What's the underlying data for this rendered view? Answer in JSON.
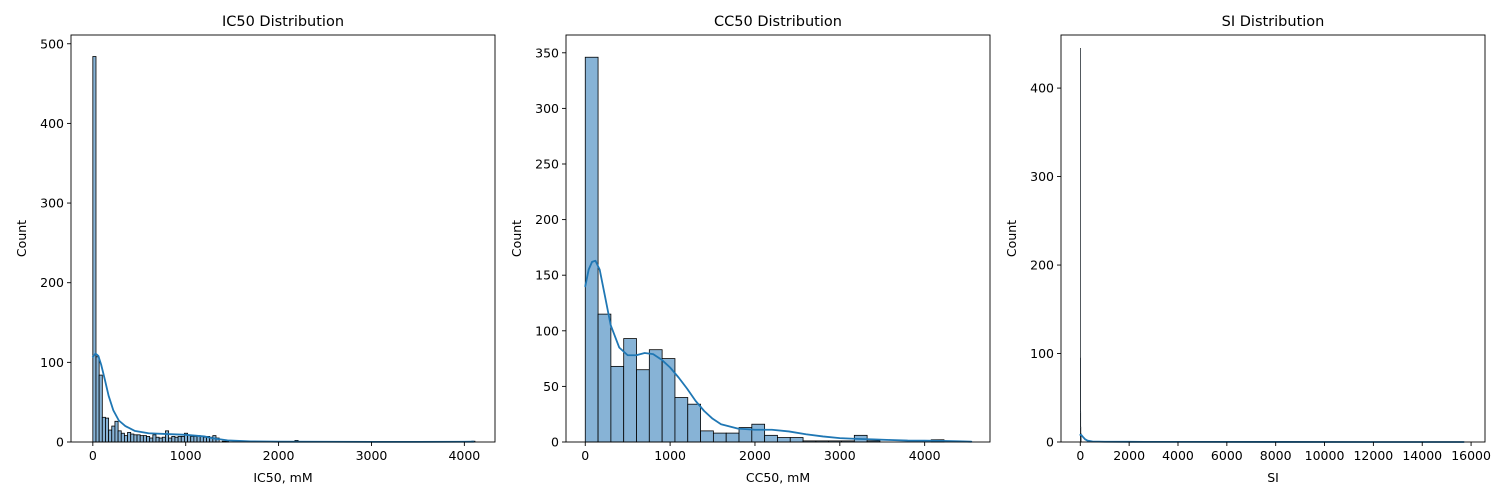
{
  "colors": {
    "bar_fill": "#87b3d6",
    "bar_edge": "#000000",
    "kde": "#1f77b4"
  },
  "chart_data": [
    {
      "type": "histogram",
      "title": "IC50 Distribution",
      "xlabel": "IC50, mM",
      "ylabel": "Count",
      "xlim": [
        -235,
        4330
      ],
      "ylim": [
        0,
        511
      ],
      "xticks": [
        0,
        1000,
        2000,
        3000,
        4000
      ],
      "yticks": [
        0,
        100,
        200,
        300,
        400,
        500
      ],
      "bin_start": 0,
      "bin_width": 34,
      "counts": [
        484,
        107,
        84,
        31,
        30,
        15,
        20,
        26,
        14,
        11,
        8,
        12,
        10,
        9,
        9,
        8,
        8,
        7,
        5,
        9,
        6,
        5,
        6,
        14,
        5,
        7,
        6,
        7,
        7,
        11,
        8,
        7,
        7,
        8,
        7,
        6,
        7,
        6,
        8,
        5,
        0,
        1,
        1,
        0,
        0,
        0,
        0,
        0,
        0,
        0,
        0,
        0,
        0,
        0,
        0,
        0,
        0,
        0,
        0,
        0,
        0,
        0,
        0,
        0,
        2,
        0,
        0,
        0,
        0,
        0,
        0,
        0,
        0,
        0,
        0,
        0,
        0,
        0,
        0,
        0,
        0,
        0,
        0,
        0,
        0,
        0,
        0,
        0,
        0,
        0,
        0,
        0,
        0,
        0,
        0,
        0,
        0,
        0,
        0,
        0,
        0,
        0,
        0,
        0,
        0,
        0,
        0,
        0,
        0,
        0,
        0,
        0,
        0,
        0,
        0,
        0,
        0,
        0,
        0,
        0,
        1
      ],
      "kde": {
        "x": [
          0,
          30,
          60,
          90,
          130,
          170,
          220,
          280,
          350,
          450,
          600,
          800,
          1000,
          1200,
          1300,
          1450,
          1700,
          2000,
          2500,
          3000,
          3500,
          4000,
          4100
        ],
        "y": [
          107,
          111,
          108,
          97,
          78,
          58,
          40,
          27,
          20,
          14,
          11,
          10,
          9,
          7,
          4.5,
          2,
          0.8,
          0.4,
          0.3,
          0.2,
          0.2,
          0.3,
          0.4
        ]
      }
    },
    {
      "type": "histogram",
      "title": "CC50 Distribution",
      "xlabel": "CC50, mM",
      "ylabel": "Count",
      "xlim": [
        -227,
        4770
      ],
      "ylim": [
        0,
        366
      ],
      "xticks": [
        0,
        1000,
        2000,
        3000,
        4000
      ],
      "yticks": [
        0,
        50,
        100,
        150,
        200,
        250,
        300,
        350
      ],
      "bin_start": 0,
      "bin_width": 151,
      "counts": [
        346,
        115,
        68,
        93,
        65,
        83,
        75,
        40,
        34,
        10,
        8,
        8,
        13,
        16,
        6,
        4,
        4,
        1,
        1,
        1,
        1,
        6,
        1,
        0,
        0,
        0,
        0,
        2,
        0,
        0
      ],
      "kde": {
        "x": [
          0,
          40,
          80,
          120,
          170,
          230,
          300,
          400,
          500,
          600,
          700,
          800,
          900,
          1000,
          1100,
          1200,
          1300,
          1400,
          1500,
          1600,
          1800,
          2000,
          2200,
          2400,
          2600,
          2800,
          3000,
          3200,
          3400,
          3600,
          3800,
          4000,
          4200,
          4400,
          4550
        ],
        "y": [
          140,
          155,
          162,
          163,
          155,
          132,
          105,
          85,
          78,
          78,
          80,
          79,
          74,
          67,
          58,
          48,
          37,
          28,
          21,
          16,
          12,
          11,
          11,
          9.5,
          7,
          5,
          3.5,
          2.8,
          2.3,
          1.8,
          1.3,
          1.2,
          1,
          0.6,
          0.3
        ]
      }
    },
    {
      "type": "histogram",
      "title": "SI Distribution",
      "xlabel": "SI",
      "ylabel": "Count",
      "xlim": [
        -790,
        16570
      ],
      "ylim": [
        0,
        460
      ],
      "xticks": [
        0,
        2000,
        4000,
        6000,
        8000,
        10000,
        12000,
        14000,
        16000
      ],
      "yticks": [
        0,
        100,
        200,
        300,
        400
      ],
      "bin_start": 0,
      "bin_width": 3.9,
      "counts": [
        445,
        95,
        34,
        17,
        10,
        6
      ],
      "kde": {
        "x": [
          0,
          40,
          100,
          200,
          300,
          500,
          1000,
          2000,
          4000,
          8000,
          12000,
          15700
        ],
        "y": [
          8,
          8,
          6,
          3,
          1.5,
          0.6,
          0.3,
          0.2,
          0.1,
          0.05,
          0.02,
          0
        ]
      }
    }
  ]
}
